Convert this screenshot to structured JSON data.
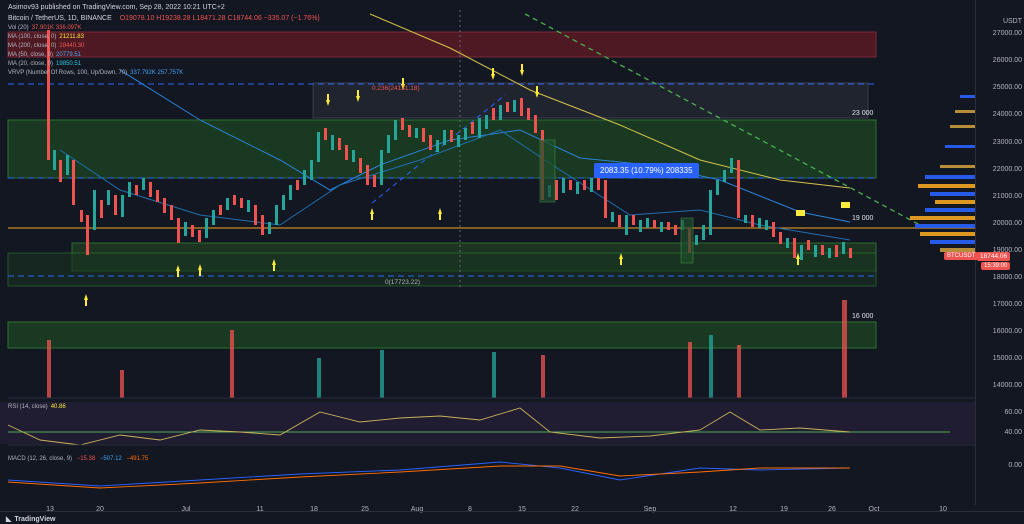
{
  "header": {
    "author_line": "Asimov93 published on TradingView.com, Sep 28, 2022 10:21 UTC+2",
    "symbol_line": "Bitcoin / TetherUS, 1D, BINANCE",
    "ohlc": "O19078.10 H19238.28 L18471.28 C18744.06 −335.07 (−1.76%)"
  },
  "indicators": [
    {
      "label": "Vol (20)",
      "value": "37.901K  336.097K",
      "color": "#ef5350"
    },
    {
      "label": "MA (100, close, 0)",
      "value": "21211.83",
      "color": "#ffeb3b"
    },
    {
      "label": "MA (200, close, 0)",
      "value": "28440.30",
      "color": "#ef5350"
    },
    {
      "label": "MA (50, close, 0)",
      "value": "20779.51",
      "color": "#42a5f5"
    },
    {
      "label": "MA (20, close, 0)",
      "value": "19850.51",
      "color": "#26c6da"
    },
    {
      "label": "VRVP (Number Of Rows, 100, Up/Down, 70)",
      "value": "337.792K  257.757K",
      "color": "#42a5f5"
    }
  ],
  "price_axis": {
    "currency": "USDT",
    "labels": [
      "27000.00",
      "26000.00",
      "25000.00",
      "24000.00",
      "23000.00",
      "22000.00",
      "21000.00",
      "20000.00",
      "19000.00",
      "18000.00",
      "17000.00",
      "16000.00",
      "15000.00",
      "14000.00"
    ],
    "current_tag": "BTCUSDT",
    "current_price": "18744.06",
    "countdown": "15:39:00"
  },
  "time_axis": {
    "labels": [
      "13",
      "20",
      "Jul",
      "11",
      "18",
      "25",
      "Aug",
      "8",
      "15",
      "22",
      "Sep",
      "12",
      "19",
      "26",
      "Oct",
      "10"
    ]
  },
  "zones": {
    "z23000": "23 000",
    "z19000": "19 000",
    "z16000": "16 000"
  },
  "annotations": {
    "measure": "2083.35 (10.79%) 208335",
    "fib_top": "0.236(24131.18)",
    "fib_bottom": "0(17723.22)"
  },
  "rsi": {
    "label": "RSI (14, close)",
    "value": "40.86",
    "levels": [
      "60.00",
      "40.00"
    ]
  },
  "macd": {
    "label": "MACD (12, 26, close, 9)",
    "values": [
      "−15.38",
      "−507.12",
      "−491.75"
    ],
    "level": "0.00"
  },
  "footer": {
    "brand": "TradingView"
  },
  "colors": {
    "up": "#26a69a",
    "down": "#ef5350",
    "zone_green": "#1b5e20",
    "zone_red": "#7b1f2a",
    "ma100": "#d4c24a",
    "ma50": "#2b82d9",
    "ma20": "#1f6fb0"
  }
}
